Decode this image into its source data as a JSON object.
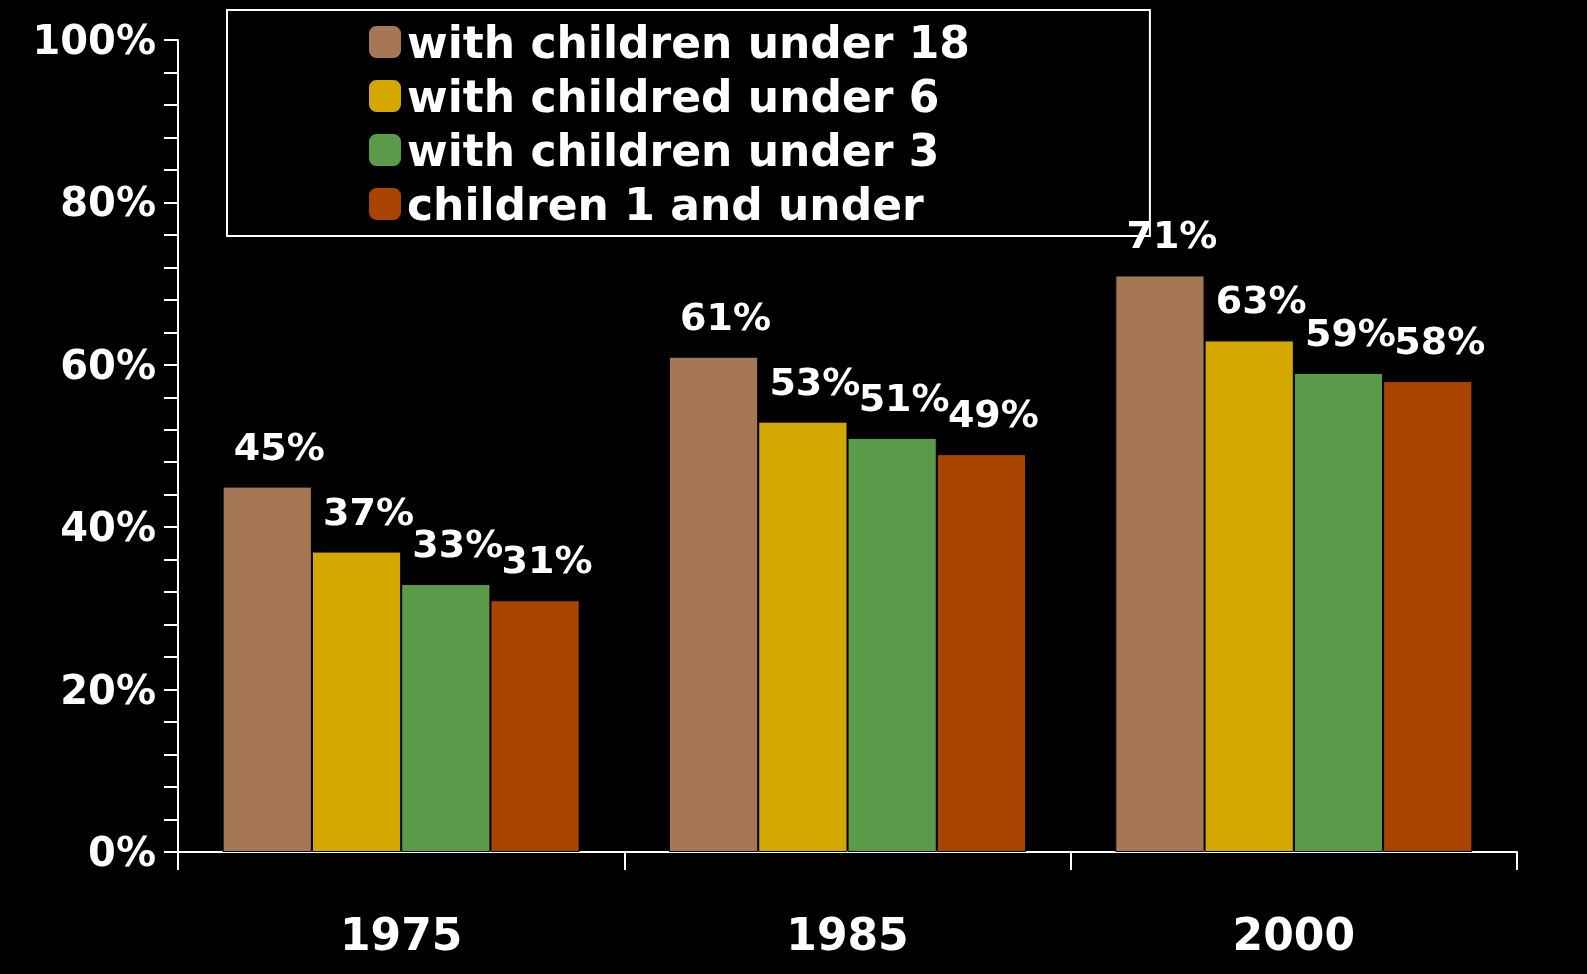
{
  "chart_data": {
    "type": "bar",
    "categories": [
      "1975",
      "1985",
      "2000"
    ],
    "series": [
      {
        "name": "with children under 18",
        "color": "#a57755",
        "values": [
          45,
          61,
          71
        ],
        "value_labels": [
          "45%",
          "61%",
          "71%"
        ]
      },
      {
        "name": "with childred under 6",
        "color": "#d4a800",
        "values": [
          37,
          53,
          63
        ],
        "value_labels": [
          "37%",
          "53%",
          "63%"
        ]
      },
      {
        "name": "with children under 3",
        "color": "#5a9a48",
        "values": [
          33,
          51,
          59
        ],
        "value_labels": [
          "33%",
          "51%",
          "59%"
        ]
      },
      {
        "name": "children 1 and under",
        "color": "#a84400",
        "values": [
          31,
          49,
          58
        ],
        "value_labels": [
          "31%",
          "49%",
          "58%"
        ]
      }
    ],
    "ylim": [
      0,
      100
    ],
    "yticks": [
      {
        "value": 0,
        "label": "0%"
      },
      {
        "value": 4,
        "label": null
      },
      {
        "value": 8,
        "label": null
      },
      {
        "value": 12,
        "label": null
      },
      {
        "value": 16,
        "label": null
      },
      {
        "value": 20,
        "label": "20%"
      },
      {
        "value": 24,
        "label": null
      },
      {
        "value": 28,
        "label": null
      },
      {
        "value": 32,
        "label": null
      },
      {
        "value": 36,
        "label": null
      },
      {
        "value": 40,
        "label": "40%"
      },
      {
        "value": 44,
        "label": null
      },
      {
        "value": 48,
        "label": null
      },
      {
        "value": 52,
        "label": null
      },
      {
        "value": 56,
        "label": null
      },
      {
        "value": 60,
        "label": "60%"
      },
      {
        "value": 64,
        "label": null
      },
      {
        "value": 68,
        "label": null
      },
      {
        "value": 72,
        "label": null
      },
      {
        "value": 76,
        "label": null
      },
      {
        "value": 80,
        "label": "80%"
      },
      {
        "value": 84,
        "label": null
      },
      {
        "value": 88,
        "label": null
      },
      {
        "value": 92,
        "label": null
      },
      {
        "value": 96,
        "label": null
      },
      {
        "value": 100,
        "label": "100%"
      }
    ],
    "legend": "top left",
    "grid": false
  }
}
